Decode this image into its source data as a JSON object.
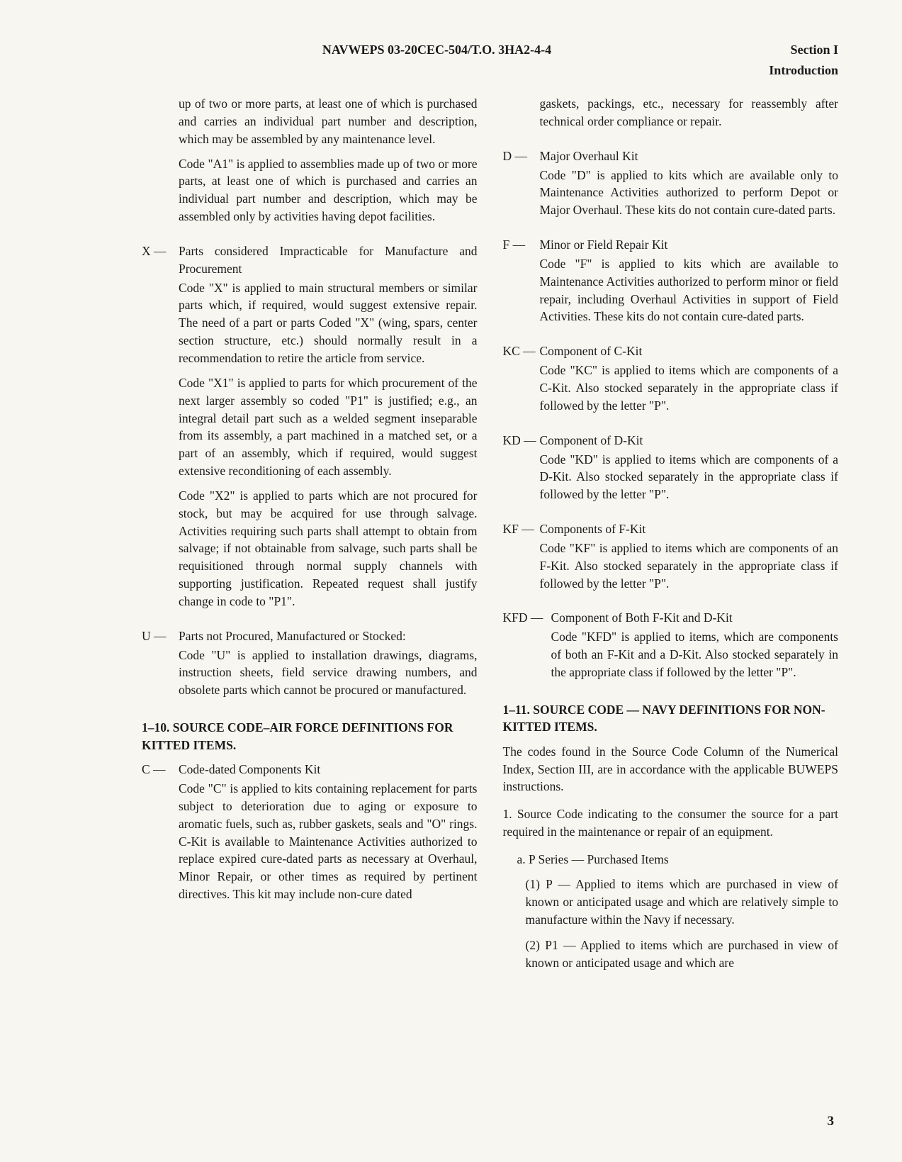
{
  "header": {
    "doc_id": "NAVWEPS 03-20CEC-504/T.O. 3HA2-4-4",
    "section": "Section I",
    "subtitle": "Introduction"
  },
  "left_col": {
    "cont1": "up of two or more parts, at least one of which is purchased and carries an individual part number and description, which may be assembled by any maintenance level.",
    "cont2": "Code \"A1\" is applied to assemblies made up of two or more parts, at least one of which is purchased and carries an individual part number and description, which may be assembled only by activities having depot facilities.",
    "X": {
      "code": "X —",
      "title": "Parts considered Impracticable for Manufacture and Procurement",
      "p1": "Code \"X\" is applied to main structural members or similar parts which, if required, would suggest extensive repair. The need of a part or parts Coded \"X\" (wing, spars, center section structure, etc.) should normally result in a recommendation to retire the article from service.",
      "p2": "Code \"X1\" is applied to parts for which procurement of the next larger assembly so coded \"P1\" is justified; e.g., an integral detail part such as a welded segment inseparable from its assembly, a part machined in a matched set, or a part of an assembly, which if required, would suggest extensive reconditioning of each assembly.",
      "p3": "Code \"X2\" is applied to parts which are not procured for stock, but may be acquired for use through salvage. Activities requiring such parts shall attempt to obtain from salvage; if not obtainable from salvage, such parts shall be requisitioned through normal supply channels with supporting justification. Repeated request shall justify change in code to \"P1\"."
    },
    "U": {
      "code": "U —",
      "title": "Parts not Procured, Manufactured or Stocked:",
      "p1": "Code \"U\" is applied to installation drawings, diagrams, instruction sheets, field service drawing numbers, and obsolete parts which cannot be procured or manufactured."
    },
    "sec110": {
      "heading": "1–10. SOURCE CODE–AIR FORCE DEFINITIONS FOR KITTED ITEMS."
    },
    "C": {
      "code": "C —",
      "title": "Code-dated Components Kit",
      "p1": "Code \"C\" is applied to kits containing replacement for parts subject to deterioration due to aging or exposure to aromatic fuels, such as, rubber gaskets, seals and \"O\" rings. C-Kit is available to Maintenance Activities authorized to replace expired cure-dated parts as necessary at Overhaul, Minor Repair, or other times as required by pertinent directives. This kit may include non-cure dated"
    }
  },
  "right_col": {
    "cont1": "gaskets, packings, etc., necessary for reassembly after technical order compliance or repair.",
    "D": {
      "code": "D —",
      "title": "Major Overhaul Kit",
      "p1": "Code \"D\" is applied to kits which are available only to Maintenance Activities authorized to perform Depot or Major Overhaul. These kits do not contain cure-dated parts."
    },
    "F": {
      "code": "F —",
      "title": "Minor or Field Repair Kit",
      "p1": "Code \"F\" is applied to kits which are available to Maintenance Activities authorized to perform minor or field repair, including Overhaul Activities in support of Field Activities. These kits do not contain cure-dated parts."
    },
    "KC": {
      "code": "KC —",
      "title": "Component of C-Kit",
      "p1": "Code \"KC\" is applied to items which are components of a C-Kit. Also stocked separately in the appropriate class if followed by the letter \"P\"."
    },
    "KD": {
      "code": "KD —",
      "title": "Component of D-Kit",
      "p1": "Code \"KD\" is applied to items which are components of a D-Kit. Also stocked separately in the appropriate class if followed by the letter \"P\"."
    },
    "KF": {
      "code": "KF —",
      "title": "Components of F-Kit",
      "p1": "Code \"KF\" is applied to items which are components of an F-Kit. Also stocked separately in the appropriate class if followed by the letter \"P\"."
    },
    "KFD": {
      "code": "KFD —",
      "title": "Component of Both F-Kit and D-Kit",
      "p1": "Code \"KFD\" is applied to items, which are components of both an F-Kit and a D-Kit. Also stocked separately in the appropriate class if followed by the letter \"P\"."
    },
    "sec111": {
      "heading": "1–11. SOURCE CODE — NAVY DEFINITIONS FOR NON-KITTED ITEMS."
    },
    "intro": "The codes found in the Source Code Column of the Numerical Index, Section III, are in accordance with the applicable BUWEPS instructions.",
    "num1": "1. Source Code indicating to the consumer the source for a part required in the maintenance or repair of an equipment.",
    "sub_a": "a. P Series — Purchased Items",
    "sub_1": "(1) P — Applied to items which are purchased in view of known or anticipated usage and which are relatively simple to manufacture within the Navy if necessary.",
    "sub_2": "(2) P1 — Applied to items which are purchased in view of known or anticipated usage and which are"
  },
  "page_number": "3"
}
